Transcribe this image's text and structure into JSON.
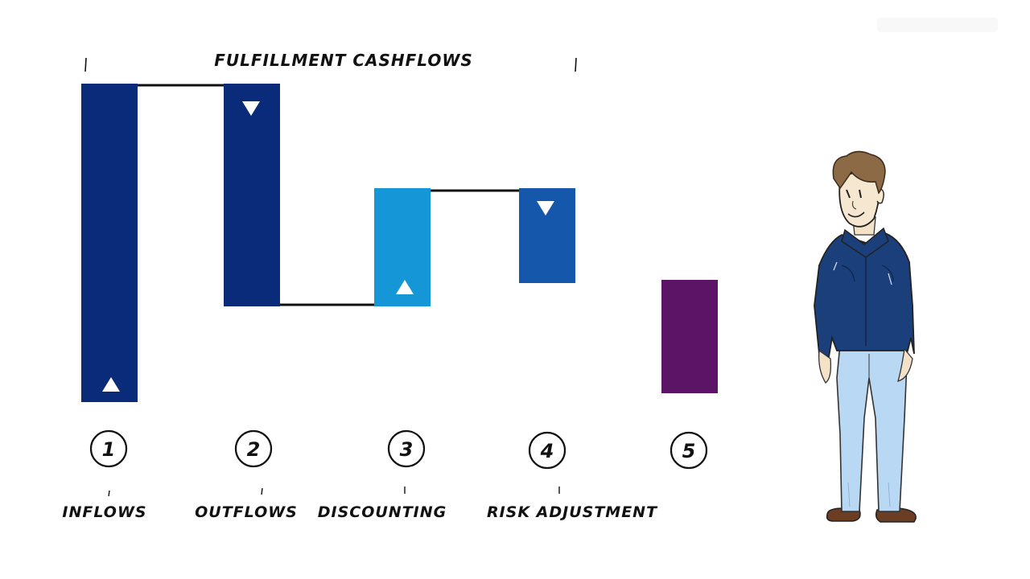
{
  "chart_data": {
    "type": "waterfall",
    "title": "FULFILLMENT CASHFLOWS",
    "steps": [
      {
        "number": "1",
        "label": "INFLOWS",
        "color": "#0a2a7a",
        "arrow": "up"
      },
      {
        "number": "2",
        "label": "OUTFLOWS",
        "color": "#0a2a7a",
        "arrow": "down"
      },
      {
        "number": "3",
        "label": "DISCOUNTING",
        "color": "#1596d6",
        "arrow": "up"
      },
      {
        "number": "4",
        "label": "RISK ADJUSTMENT",
        "color": "#1457ab",
        "arrow": "down"
      },
      {
        "number": "5",
        "label": "",
        "color": "#5c1466",
        "arrow": "none"
      }
    ]
  },
  "character": {
    "icon": "presenter-man-illustration",
    "jacket_color": "#1b3f7a",
    "jeans_color": "#b9d8f4",
    "hair_color": "#8b6a45"
  },
  "watermark": {
    "icon": "watermark-logo"
  }
}
